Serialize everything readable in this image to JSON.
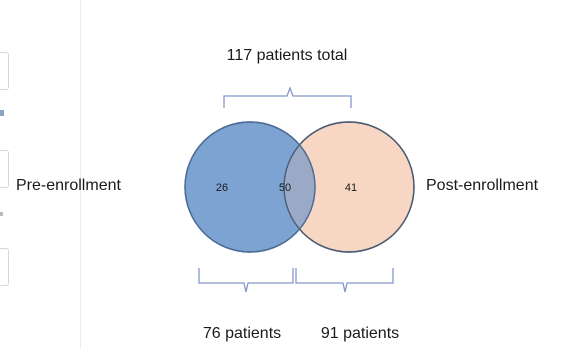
{
  "diagram": {
    "total_label": "117 patients total",
    "left_set": {
      "label": "Pre-enrollment",
      "only_count": "26",
      "fill": "#7da3d3",
      "stroke": "#4c6c94",
      "bracket_label": "76 patients"
    },
    "right_set": {
      "label": "Post-enrollment",
      "only_count": "41",
      "fill": "#f7d7c3",
      "stroke": "#4c5c74",
      "bracket_label": "91 patients"
    },
    "overlap": {
      "count": "50",
      "fill": "#9aaac6"
    },
    "bracket_color": "#8497c8"
  }
}
